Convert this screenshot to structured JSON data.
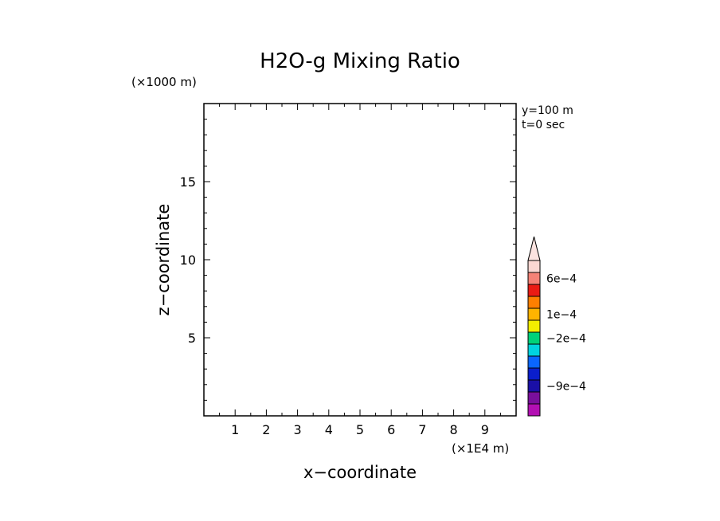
{
  "chart_data": {
    "type": "heatmap",
    "title": "H2O-g Mixing Ratio",
    "xlabel": "x−coordinate",
    "ylabel": "z−coordinate",
    "x_unit": "(×1E4 m)",
    "y_unit": "(×1000 m)",
    "xlim": [
      0,
      10
    ],
    "ylim": [
      0,
      20
    ],
    "x_ticks": [
      1,
      2,
      3,
      4,
      5,
      6,
      7,
      8,
      9
    ],
    "y_ticks": [
      5,
      10,
      15
    ],
    "annotations": [
      "y=100 m",
      "t=0 sec"
    ],
    "values": [],
    "colorbar": {
      "colors": [
        "#b30fb3",
        "#7a0f9c",
        "#1a0fa6",
        "#0a1ecc",
        "#0a66ff",
        "#00d4e0",
        "#00d27a",
        "#f3ee00",
        "#ffb300",
        "#ff7f00",
        "#ea1b14",
        "#f58277",
        "#fbd7d2"
      ],
      "labels": [
        {
          "value": "−9e−4",
          "band": 2
        },
        {
          "value": "−2e−4",
          "band": 6
        },
        {
          "value": "1e−4",
          "band": 8
        },
        {
          "value": "6e−4",
          "band": 11
        }
      ]
    }
  }
}
